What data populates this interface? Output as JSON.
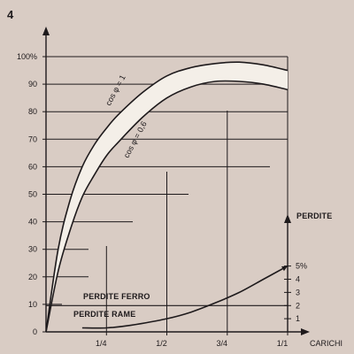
{
  "figure_number": "4",
  "colors": {
    "background": "#d9ccc4",
    "ink": "#1e1a1c",
    "band_fill": "#f4efe8"
  },
  "chart_data": {
    "type": "line",
    "title": "",
    "xlabel": "CARICHI",
    "ylabel": "",
    "x_ticks": [
      {
        "value": 0.25,
        "label": "1/4"
      },
      {
        "value": 0.5,
        "label": "1/2"
      },
      {
        "value": 0.75,
        "label": "3/4"
      },
      {
        "value": 1.0,
        "label": "1/1"
      }
    ],
    "xlim": [
      0,
      1.1
    ],
    "ylim": [
      0,
      100
    ],
    "y_ticks": [
      {
        "value": 0,
        "label": "0"
      },
      {
        "value": 10,
        "label": "10"
      },
      {
        "value": 20,
        "label": "20"
      },
      {
        "value": 30,
        "label": "30"
      },
      {
        "value": 40,
        "label": "40"
      },
      {
        "value": 50,
        "label": "50"
      },
      {
        "value": 60,
        "label": "60"
      },
      {
        "value": 70,
        "label": "70"
      },
      {
        "value": 80,
        "label": "80"
      },
      {
        "value": 90,
        "label": "90"
      },
      {
        "value": 100,
        "label": "100%"
      }
    ],
    "efficiency_series": [
      {
        "name": "cos φ = 1",
        "x": [
          0,
          0.05,
          0.1,
          0.15,
          0.2,
          0.25,
          0.3,
          0.4,
          0.5,
          0.6,
          0.7,
          0.8,
          0.9,
          1.0
        ],
        "y": [
          0,
          30,
          48,
          60,
          68,
          74,
          79,
          87,
          93,
          96,
          97.5,
          98,
          97,
          95
        ]
      },
      {
        "name": "cos φ = 0,6",
        "x": [
          0,
          0.05,
          0.1,
          0.15,
          0.2,
          0.25,
          0.3,
          0.4,
          0.5,
          0.6,
          0.7,
          0.8,
          0.9,
          1.0
        ],
        "y": [
          0,
          22,
          37,
          49,
          57,
          64,
          69,
          78,
          85,
          89,
          91,
          91,
          90,
          88
        ]
      }
    ],
    "secondary_axis": {
      "label": "PERDITE",
      "ylim": [
        0,
        10
      ],
      "ticks": [
        {
          "value": 1,
          "label": "1"
        },
        {
          "value": 2,
          "label": "2"
        },
        {
          "value": 3,
          "label": "3"
        },
        {
          "value": 4,
          "label": "4"
        },
        {
          "value": 5,
          "label": "5%"
        }
      ]
    },
    "loss_series": [
      {
        "name": "PERDITE FERRO",
        "x": [
          0,
          1.0
        ],
        "y": [
          2,
          2
        ]
      },
      {
        "name": "PERDITE RAME",
        "x": [
          0.15,
          0.25,
          0.35,
          0.5,
          0.6,
          0.7,
          0.8,
          0.9,
          1.0
        ],
        "y": [
          0.3,
          0.3,
          0.5,
          1.0,
          1.5,
          2.2,
          3.0,
          4.0,
          5.0
        ]
      }
    ],
    "grid": "stepped"
  }
}
